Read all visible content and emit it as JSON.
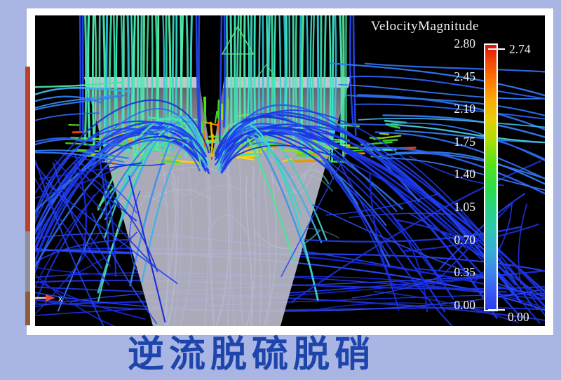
{
  "page": {
    "background_color": "#a9b5e2"
  },
  "figure": {
    "frame_color": "#ffffff",
    "viz_background": "#000000",
    "legend": {
      "title": "VelocityMagnitude",
      "ticks": [
        "2.80",
        "2.45",
        "2.10",
        "1.75",
        "1.40",
        "1.05",
        "0.70",
        "0.35",
        "0.00"
      ],
      "max_annotation": "2.74",
      "min_annotation": "0.00",
      "colorbar_stops": [
        [
          "0%",
          "#e01309"
        ],
        [
          "7%",
          "#f34c06"
        ],
        [
          "14%",
          "#fb7d03"
        ],
        [
          "21%",
          "#fbab03"
        ],
        [
          "28%",
          "#e6cc04"
        ],
        [
          "36%",
          "#abdd07"
        ],
        [
          "45%",
          "#55e21a"
        ],
        [
          "54%",
          "#2bdd4a"
        ],
        [
          "62%",
          "#27d384"
        ],
        [
          "70%",
          "#2dc5b2"
        ],
        [
          "78%",
          "#36add9"
        ],
        [
          "86%",
          "#3b85ec"
        ],
        [
          "93%",
          "#3a5bf2"
        ],
        [
          "100%",
          "#2a3bf0"
        ]
      ]
    },
    "axis_indicator_label": "x",
    "edge_strips": [
      {
        "color": "#b8422a"
      },
      {
        "color": "#8e8e99"
      },
      {
        "color": "#8d5c3a"
      }
    ],
    "palette": {
      "web_blues": [
        "#1526dd",
        "#1c33ee",
        "#2441f8",
        "#1f30cf",
        "#2a4df5"
      ],
      "arc_long": [
        "#1b35e8",
        "#2141f0",
        "#1830d8"
      ],
      "arc_mid": [
        "#2a5ff0",
        "#3379f0",
        "#2e6be8"
      ],
      "arc_short": [
        "#3fb0e8",
        "#42d0c8",
        "#52e0a0",
        "#3a90f0"
      ],
      "bundle": [
        "#3be3ae",
        "#49ecb9",
        "#35d9c9",
        "#56eea1",
        "#2fc9e2",
        "#40e8c0"
      ],
      "duct_blue": "#2244e8",
      "band": [
        "#3ee02e",
        "#3ee02e",
        "#3ee02e",
        "#63e81f",
        "#63e81f",
        "#9ae018",
        "#9ae018",
        "#c8e00a",
        "#ffd400",
        "#ffd400",
        "#ff8c00",
        "#ff8c00",
        "#ff4400",
        "#38d8c0",
        "#40e8c0"
      ],
      "jet": [
        "#46e81c",
        "#a8e005",
        "#ffb400",
        "#ff6a00",
        "#35e060"
      ],
      "inner_faint": [
        "#7078e8",
        "#8088f0",
        "#6068d8",
        "#9098f0"
      ],
      "inner_cyan": [
        "#58c8e0",
        "#60d8d0",
        "#70c0f0"
      ],
      "funnel_fill_top": "rgba(150,150,172,0.60)",
      "funnel_fill_bottom": "rgba(188,188,204,0.90)",
      "funnel_lid": "rgba(205,204,218,0.92)",
      "glyph_green": "#5ae87d",
      "axis_arrow": "#e8473c",
      "axis_tail": "#f0c6c6"
    }
  },
  "caption": {
    "text": "逆流脱硫脱硝",
    "color": "#1d45ac"
  },
  "chart_data": {
    "type": "heatmap",
    "subtype": "cfd-streamline-visualization",
    "title": "VelocityMagnitude",
    "colorbar": {
      "label": "VelocityMagnitude",
      "min": 0.0,
      "max": 2.8,
      "tick_values": [
        2.8,
        2.45,
        2.1,
        1.75,
        1.4,
        1.05,
        0.7,
        0.35,
        0.0
      ],
      "annotated_max": 2.74,
      "annotated_min": 0.0,
      "colormap": "rainbow: blue (0.00) -> cyan -> green -> yellow -> orange -> red (2.80)",
      "legend_position": "right"
    },
    "caption": "逆流脱硫脱硝",
    "description": "Streamlines of downward inlet gas flow into a conical (counter-flow) scrubber vessel, colored by velocity magnitude 0.00-2.74; high velocity (green/yellow/red) in the central inlet jet and impingement band, low velocity (blue) fountain arcs and recirculation web below and to the sides."
  }
}
